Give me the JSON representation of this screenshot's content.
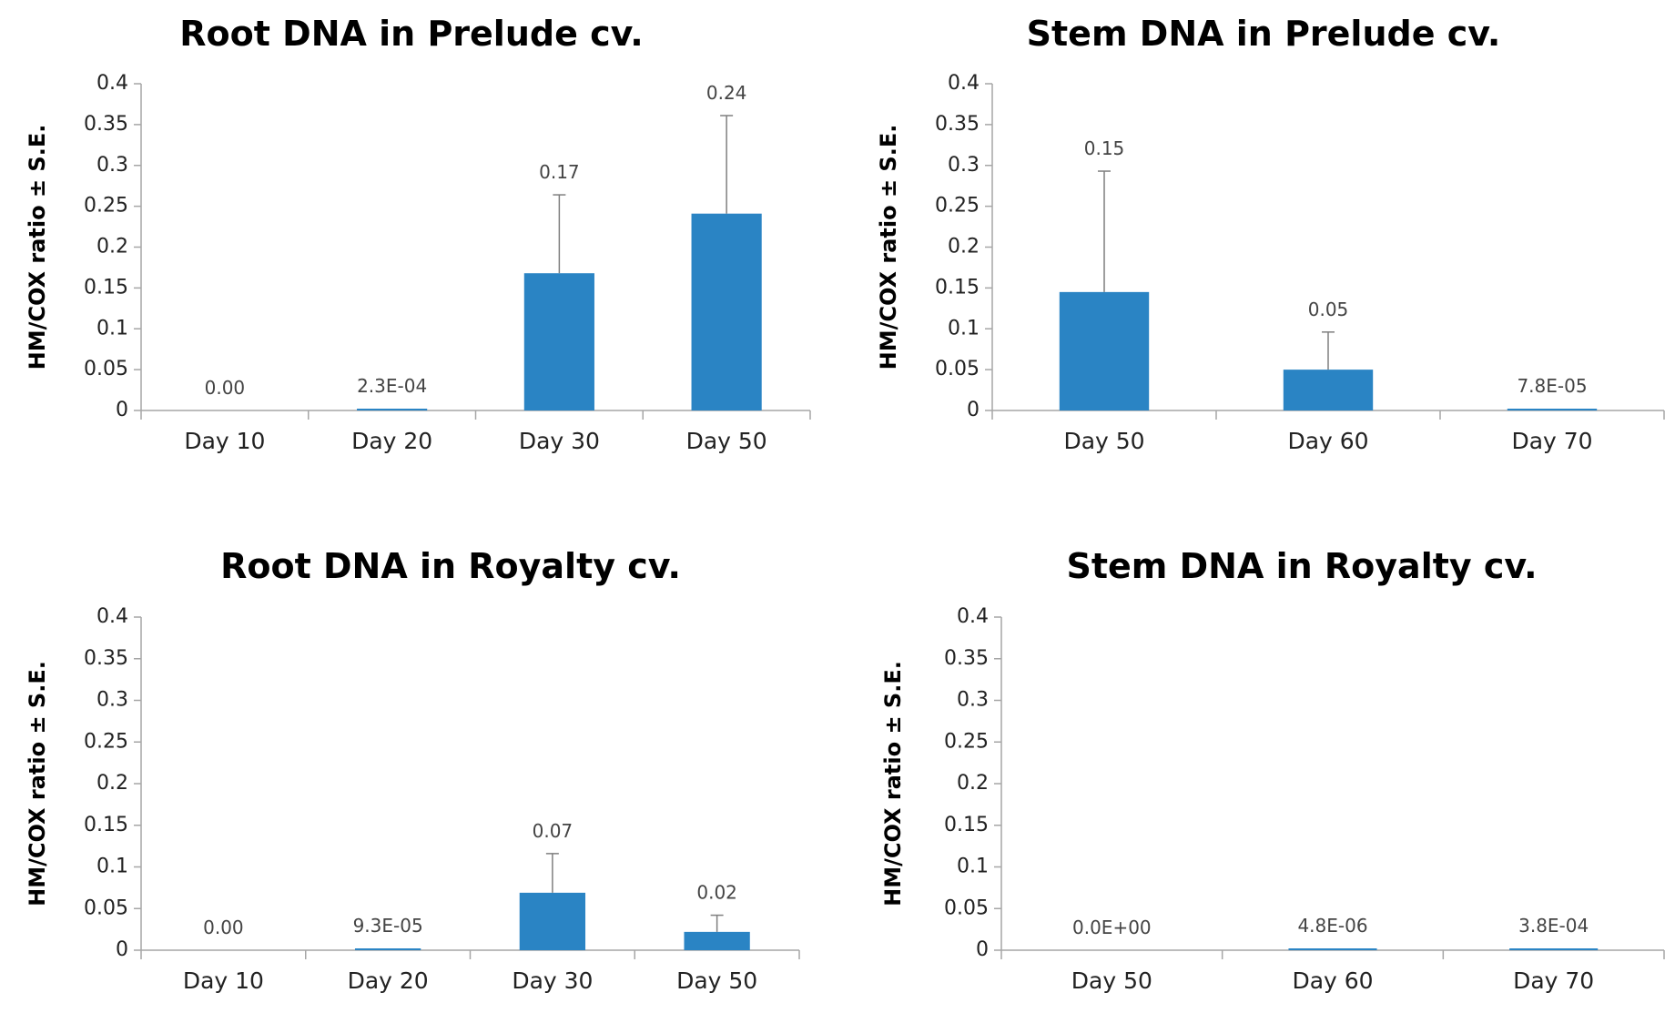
{
  "chart_data": [
    {
      "type": "bar",
      "title": "Root DNA in Prelude cv.",
      "xlabel": "",
      "ylabel": "HM/COX ratio ± S.E.",
      "ylim": [
        0,
        0.4
      ],
      "yticks": [
        "0",
        "0.05",
        "0.1",
        "0.15",
        "0.2",
        "0.25",
        "0.3",
        "0.35",
        "0.4"
      ],
      "categories": [
        "Day 10",
        "Day 20",
        "Day 30",
        "Day 50"
      ],
      "values": [
        0.0,
        0.00023,
        0.168,
        0.241
      ],
      "errors": [
        0.0,
        0.0,
        0.096,
        0.12
      ],
      "data_labels": [
        "0.00",
        "2.3E-04",
        "0.17",
        "0.24"
      ]
    },
    {
      "type": "bar",
      "title": "Stem DNA in Prelude cv.",
      "xlabel": "",
      "ylabel": "HM/COX ratio ± S.E.",
      "ylim": [
        0,
        0.4
      ],
      "yticks": [
        "0",
        "0.05",
        "0.1",
        "0.15",
        "0.2",
        "0.25",
        "0.3",
        "0.35",
        "0.4"
      ],
      "categories": [
        "Day 50",
        "Day 60",
        "Day 70"
      ],
      "values": [
        0.145,
        0.05,
        7.8e-05
      ],
      "errors": [
        0.148,
        0.046,
        0.0
      ],
      "data_labels": [
        "0.15",
        "0.05",
        "7.8E-05"
      ]
    },
    {
      "type": "bar",
      "title": "Root DNA in Royalty cv.",
      "xlabel": "",
      "ylabel": "HM/COX ratio ± S.E.",
      "ylim": [
        0,
        0.4
      ],
      "yticks": [
        "0",
        "0.05",
        "0.1",
        "0.15",
        "0.2",
        "0.25",
        "0.3",
        "0.35",
        "0.4"
      ],
      "categories": [
        "Day 10",
        "Day 20",
        "Day 30",
        "Day 50"
      ],
      "values": [
        0.0,
        9.3e-05,
        0.069,
        0.022
      ],
      "errors": [
        0.0,
        0.0,
        0.047,
        0.02
      ],
      "data_labels": [
        "0.00",
        "9.3E-05",
        "0.07",
        "0.02"
      ]
    },
    {
      "type": "bar",
      "title": "Stem DNA in Royalty cv.",
      "xlabel": "",
      "ylabel": "HM/COX ratio ± S.E.",
      "ylim": [
        0,
        0.4
      ],
      "yticks": [
        "0",
        "0.05",
        "0.1",
        "0.15",
        "0.2",
        "0.25",
        "0.3",
        "0.35",
        "0.4"
      ],
      "categories": [
        "Day 50",
        "Day 60",
        "Day 70"
      ],
      "values": [
        0.0,
        4.8e-06,
        0.00038
      ],
      "errors": [
        0.0,
        0.0,
        0.0
      ],
      "data_labels": [
        "0.0E+00",
        "4.8E-06",
        "3.8E-04"
      ]
    }
  ],
  "colors": {
    "bar": "#2a84c4",
    "axis": "#a6a6a6",
    "error_bar": "#7f7f7f"
  }
}
